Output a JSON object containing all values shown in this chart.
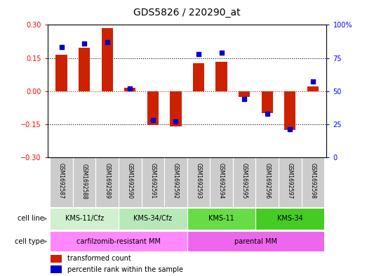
{
  "title": "GDS5826 / 220290_at",
  "samples": [
    "GSM1692587",
    "GSM1692588",
    "GSM1692589",
    "GSM1692590",
    "GSM1692591",
    "GSM1692592",
    "GSM1692593",
    "GSM1692594",
    "GSM1692595",
    "GSM1692596",
    "GSM1692597",
    "GSM1692598"
  ],
  "transformed_count": [
    0.163,
    0.195,
    0.285,
    0.015,
    -0.155,
    -0.16,
    0.125,
    0.132,
    -0.025,
    -0.1,
    -0.175,
    0.02
  ],
  "percentile_rank": [
    83,
    86,
    87,
    52,
    28,
    27,
    78,
    79,
    44,
    33,
    21,
    57
  ],
  "cell_lines": [
    {
      "label": "KMS-11/Cfz",
      "start": 0,
      "end": 3
    },
    {
      "label": "KMS-34/Cfz",
      "start": 3,
      "end": 6
    },
    {
      "label": "KMS-11",
      "start": 6,
      "end": 9
    },
    {
      "label": "KMS-34",
      "start": 9,
      "end": 12
    }
  ],
  "cell_line_colors": [
    "#d0f0d0",
    "#b8e8b8",
    "#66dd44",
    "#44cc22"
  ],
  "cell_types": [
    {
      "label": "carfilzomib-resistant MM",
      "start": 0,
      "end": 6
    },
    {
      "label": "parental MM",
      "start": 6,
      "end": 12
    }
  ],
  "cell_type_colors": [
    "#ff88ff",
    "#ee66ee"
  ],
  "ylim_left": [
    -0.3,
    0.3
  ],
  "ylim_right": [
    0,
    100
  ],
  "yticks_left": [
    -0.3,
    -0.15,
    0,
    0.15,
    0.3
  ],
  "yticks_right": [
    0,
    25,
    50,
    75,
    100
  ],
  "bar_color": "#cc2200",
  "dot_color": "#0000cc",
  "bar_width": 0.5,
  "dot_size": 25,
  "sample_box_color": "#cccccc",
  "title_fontsize": 10,
  "tick_fontsize": 7,
  "sample_fontsize": 5.5,
  "annotation_fontsize": 7,
  "legend_fontsize": 7
}
